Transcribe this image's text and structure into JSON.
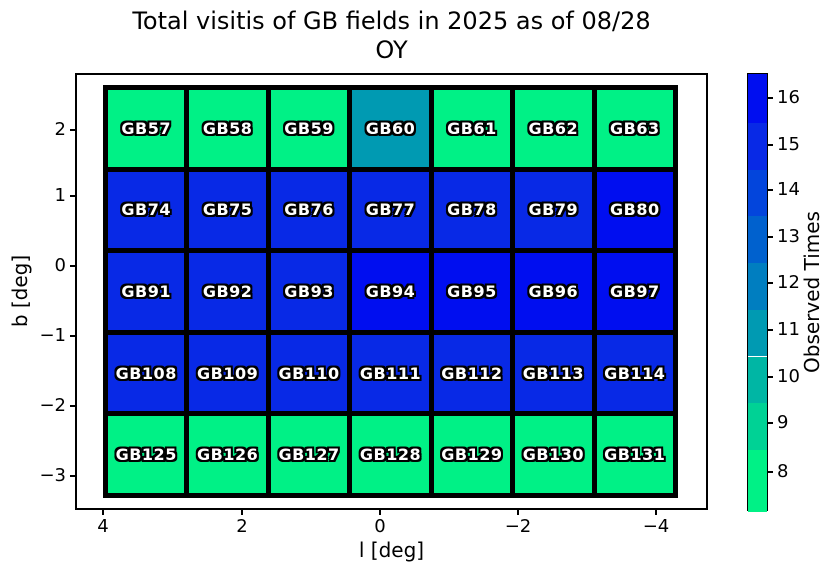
{
  "title_line1": "Total visitis of GB fields in 2025 as of 08/28",
  "title_line2": "OY",
  "chart_data": {
    "type": "heatmap",
    "title": "Total visitis of GB fields in 2025 as of 08/28 OY",
    "xlabel": "l [deg]",
    "ylabel": "b [deg]",
    "colorbar_label": "Observed Times",
    "x_ticks": [
      "4",
      "2",
      "0",
      "−2",
      "−4"
    ],
    "y_ticks": [
      "2",
      "1",
      "0",
      "−1",
      "−2",
      "−3"
    ],
    "x_axis_inverted": true,
    "grid_shape": {
      "rows": 5,
      "cols": 7
    },
    "value_colors": {
      "8": "#00F186",
      "11": "#009AB2",
      "15": "#0829E6",
      "16": "#000EF0"
    },
    "rows": [
      {
        "b": 2,
        "cells": [
          {
            "label": "GB57",
            "value": 8
          },
          {
            "label": "GB58",
            "value": 8
          },
          {
            "label": "GB59",
            "value": 8
          },
          {
            "label": "GB60",
            "value": 11
          },
          {
            "label": "GB61",
            "value": 8
          },
          {
            "label": "GB62",
            "value": 8
          },
          {
            "label": "GB63",
            "value": 8
          }
        ]
      },
      {
        "b": 1,
        "cells": [
          {
            "label": "GB74",
            "value": 15
          },
          {
            "label": "GB75",
            "value": 15
          },
          {
            "label": "GB76",
            "value": 15
          },
          {
            "label": "GB77",
            "value": 15
          },
          {
            "label": "GB78",
            "value": 15
          },
          {
            "label": "GB79",
            "value": 15
          },
          {
            "label": "GB80",
            "value": 16
          }
        ]
      },
      {
        "b": 0,
        "cells": [
          {
            "label": "GB91",
            "value": 15
          },
          {
            "label": "GB92",
            "value": 15
          },
          {
            "label": "GB93",
            "value": 15
          },
          {
            "label": "GB94",
            "value": 16
          },
          {
            "label": "GB95",
            "value": 16
          },
          {
            "label": "GB96",
            "value": 16
          },
          {
            "label": "GB97",
            "value": 16
          }
        ]
      },
      {
        "b": -1,
        "cells": [
          {
            "label": "GB108",
            "value": 15
          },
          {
            "label": "GB109",
            "value": 15
          },
          {
            "label": "GB110",
            "value": 15
          },
          {
            "label": "GB111",
            "value": 15
          },
          {
            "label": "GB112",
            "value": 15
          },
          {
            "label": "GB113",
            "value": 15
          },
          {
            "label": "GB114",
            "value": 15
          }
        ]
      },
      {
        "b": -3,
        "cells": [
          {
            "label": "GB125",
            "value": 8
          },
          {
            "label": "GB126",
            "value": 8
          },
          {
            "label": "GB127",
            "value": 8
          },
          {
            "label": "GB128",
            "value": 8
          },
          {
            "label": "GB129",
            "value": 8
          },
          {
            "label": "GB130",
            "value": 8
          },
          {
            "label": "GB131",
            "value": 8
          }
        ]
      }
    ],
    "colorbar": {
      "ticks": [
        "16",
        "15",
        "14",
        "13",
        "12",
        "11",
        "10",
        "9",
        "8"
      ],
      "range": [
        7.5,
        16.5
      ],
      "bands_top_to_bottom": [
        {
          "value": 16,
          "color": "#000EF0"
        },
        {
          "value": 15,
          "color": "#0829E6"
        },
        {
          "value": 14,
          "color": "#0345DC"
        },
        {
          "value": 13,
          "color": "#0061CE"
        },
        {
          "value": 12,
          "color": "#007EC0"
        },
        {
          "value": 11,
          "color": "#009AB2"
        },
        {
          "value": 10,
          "color": "#00B6A4"
        },
        {
          "value": 9,
          "color": "#00D295"
        },
        {
          "value": 8,
          "color": "#00F186"
        }
      ]
    }
  }
}
